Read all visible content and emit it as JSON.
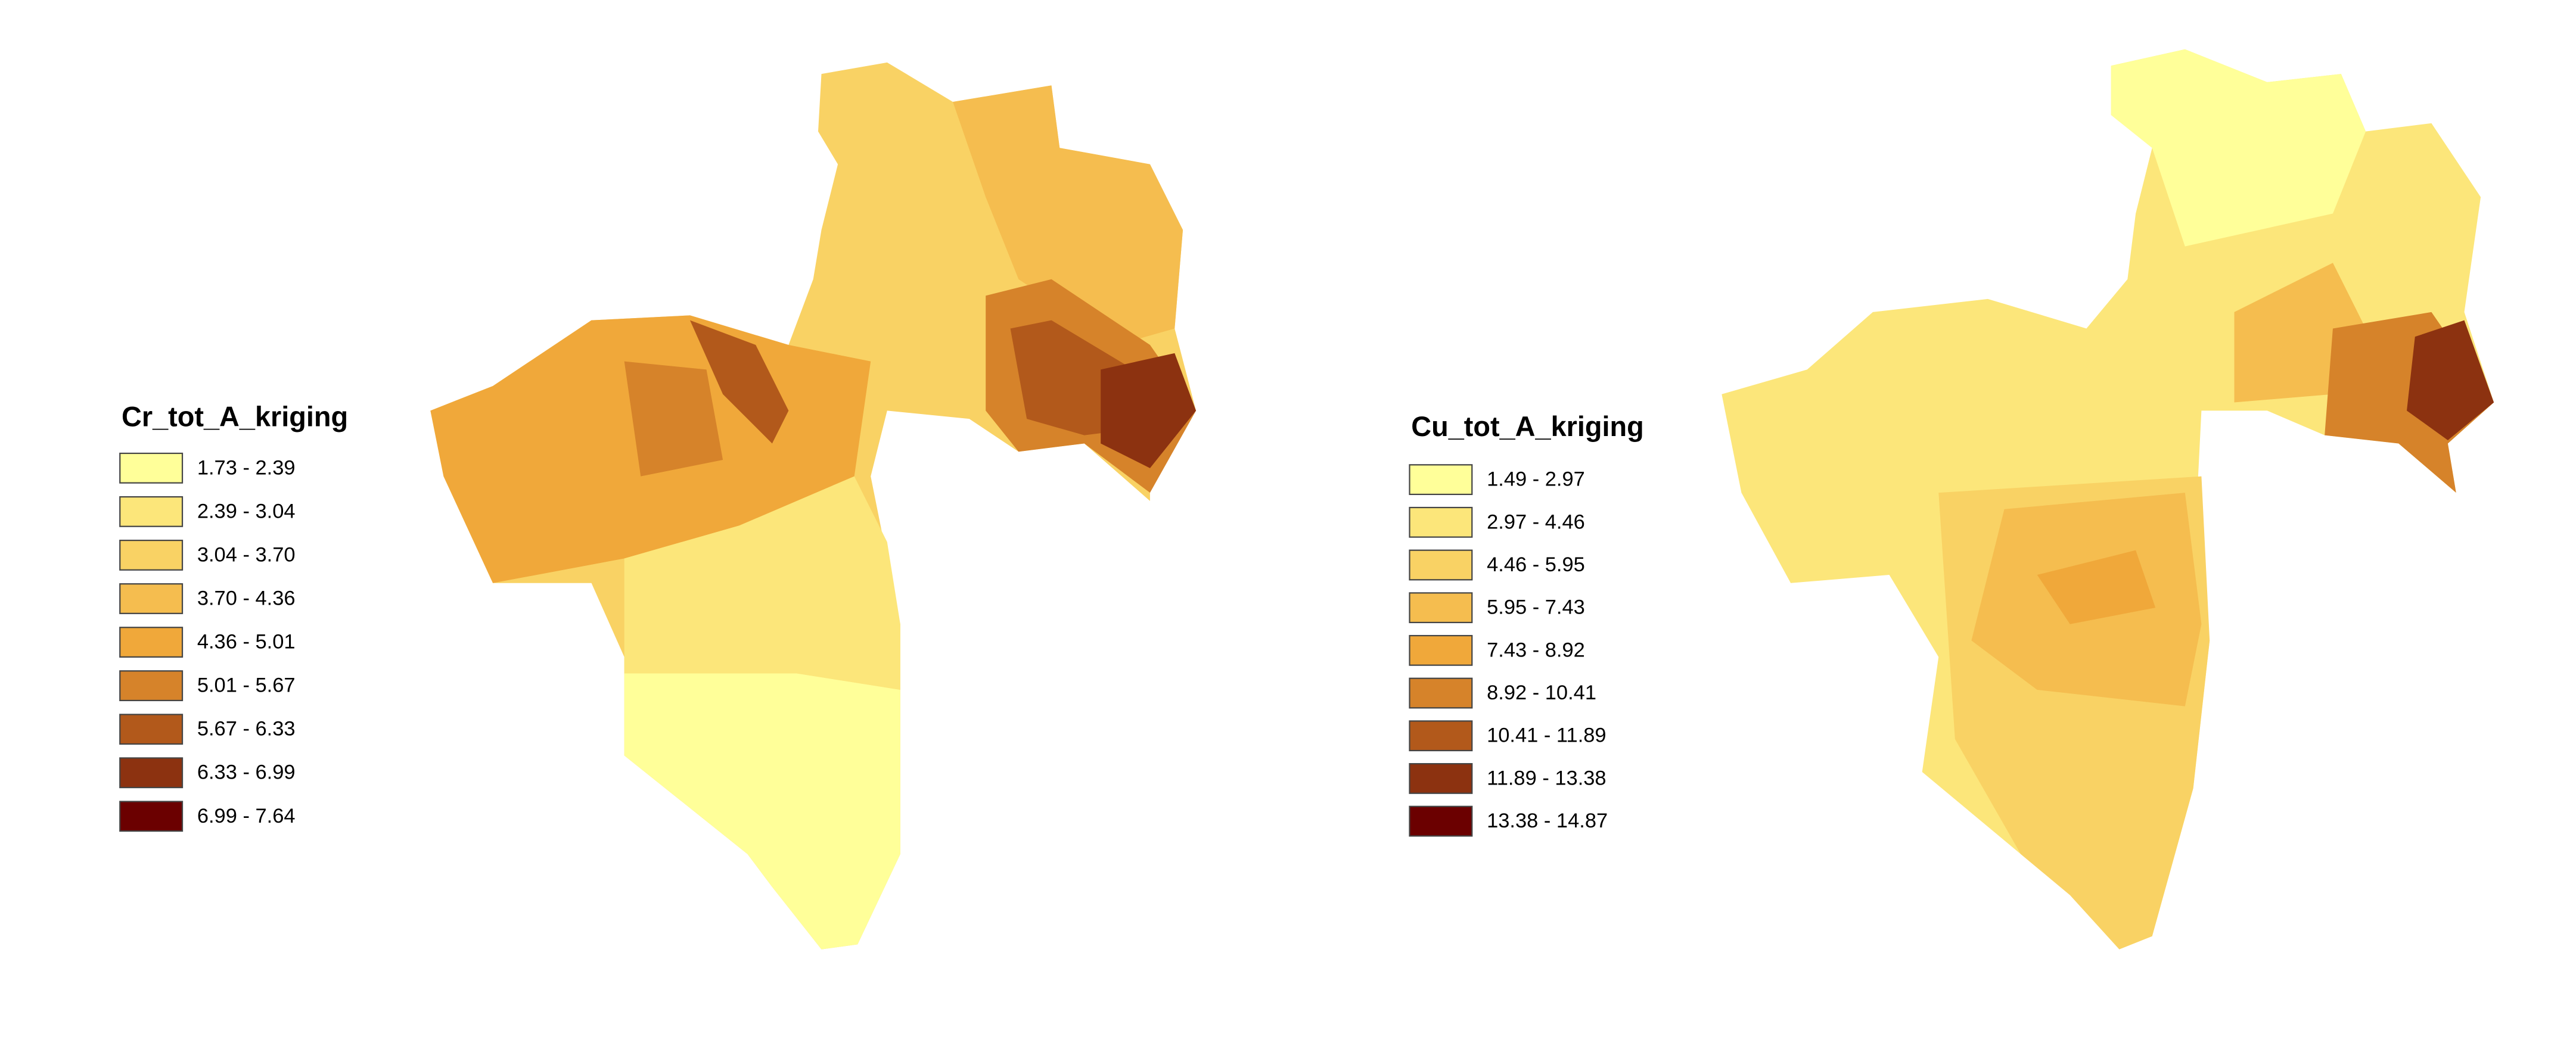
{
  "maps": [
    {
      "legend": {
        "title": "Cr_tot_A_kriging",
        "classes": [
          {
            "label": "1.73 - 2.39",
            "color": "#ffff99"
          },
          {
            "label": "2.39 - 3.04",
            "color": "#fce67a"
          },
          {
            "label": "3.04 - 3.70",
            "color": "#f9d264"
          },
          {
            "label": "3.70 - 4.36",
            "color": "#f5bd4f"
          },
          {
            "label": "4.36 - 5.01",
            "color": "#f0a83a"
          },
          {
            "label": "5.01 - 5.67",
            "color": "#d6832a"
          },
          {
            "label": "5.67 - 6.33",
            "color": "#b2591b"
          },
          {
            "label": "6.33 - 6.99",
            "color": "#8c3210"
          },
          {
            "label": "6.99 - 7.64",
            "color": "#6b0000"
          }
        ]
      }
    },
    {
      "legend": {
        "title": "Cu_tot_A_kriging",
        "classes": [
          {
            "label": "1.49 - 2.97",
            "color": "#ffff99"
          },
          {
            "label": "2.97 - 4.46",
            "color": "#fce67a"
          },
          {
            "label": "4.46 - 5.95",
            "color": "#f9d264"
          },
          {
            "label": "5.95 - 7.43",
            "color": "#f5bd4f"
          },
          {
            "label": "7.43 - 8.92",
            "color": "#f0a83a"
          },
          {
            "label": "8.92 - 10.41",
            "color": "#d6832a"
          },
          {
            "label": "10.41 - 11.89",
            "color": "#b2591b"
          },
          {
            "label": "11.89 - 13.38",
            "color": "#8c3210"
          },
          {
            "label": "13.38 - 14.87",
            "color": "#6b0000"
          }
        ]
      }
    }
  ]
}
